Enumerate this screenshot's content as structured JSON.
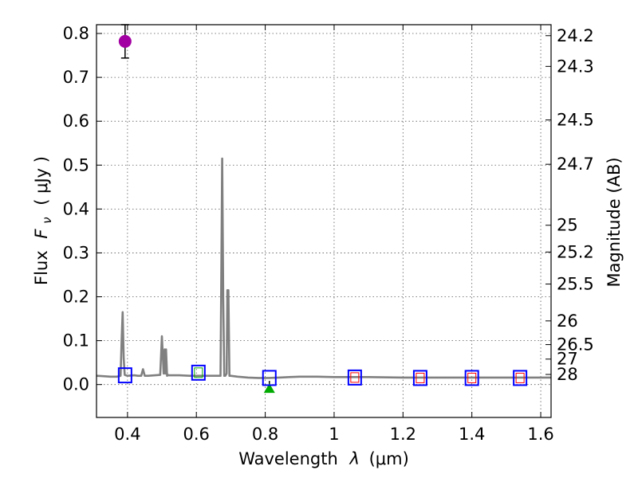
{
  "chart_data": {
    "type": "line",
    "xlabel": "Wavelength",
    "xlabel_symbol": "λ",
    "xlabel_unit": "(μm)",
    "ylabel": "Flux",
    "ylabel_symbol": "F",
    "ylabel_subscript": "ν",
    "ylabel_unit": "( μJy )",
    "y2label": "Magnitude (AB)",
    "xlim": [
      0.31,
      1.63
    ],
    "ylim": [
      -0.075,
      0.82
    ],
    "grid": true,
    "x_ticks": [
      0.4,
      0.6,
      0.8,
      1.0,
      1.2,
      1.4,
      1.6
    ],
    "x_tick_labels": [
      "0.4",
      "0.6",
      "0.8",
      "1",
      "1.2",
      "1.4",
      "1.6"
    ],
    "y_ticks": [
      0.0,
      0.1,
      0.2,
      0.3,
      0.4,
      0.5,
      0.6,
      0.7,
      0.8
    ],
    "y_tick_labels": [
      "0.0",
      "0.1",
      "0.2",
      "0.3",
      "0.4",
      "0.5",
      "0.6",
      "0.7",
      "0.8"
    ],
    "magnitude_ticks": [
      {
        "label": "24.2",
        "flux": 0.795
      },
      {
        "label": "24.3",
        "flux": 0.725
      },
      {
        "label": "24.5",
        "flux": 0.603
      },
      {
        "label": "24.7",
        "flux": 0.502
      },
      {
        "label": "25",
        "flux": 0.363
      },
      {
        "label": "25.2",
        "flux": 0.302
      },
      {
        "label": "25.5",
        "flux": 0.229
      },
      {
        "label": "26",
        "flux": 0.145
      },
      {
        "label": "26.5",
        "flux": 0.091
      },
      {
        "label": "27",
        "flux": 0.058
      },
      {
        "label": "28",
        "flux": 0.023
      }
    ],
    "series": [
      {
        "name": "model spectrum",
        "color": "#808080",
        "x": [
          0.31,
          0.33,
          0.35,
          0.37,
          0.38,
          0.383,
          0.386,
          0.389,
          0.392,
          0.4,
          0.42,
          0.43,
          0.44,
          0.445,
          0.45,
          0.46,
          0.48,
          0.495,
          0.5,
          0.505,
          0.508,
          0.51,
          0.512,
          0.515,
          0.518,
          0.52,
          0.55,
          0.58,
          0.61,
          0.64,
          0.66,
          0.67,
          0.672,
          0.675,
          0.678,
          0.681,
          0.684,
          0.688,
          0.69,
          0.693,
          0.696,
          0.699,
          0.72,
          0.75,
          0.78,
          0.81,
          0.84,
          0.87,
          0.9,
          0.95,
          1.0,
          1.1,
          1.2,
          1.3,
          1.4,
          1.5,
          1.6,
          1.63
        ],
        "y": [
          0.02,
          0.019,
          0.018,
          0.018,
          0.02,
          0.1,
          0.165,
          0.06,
          0.022,
          0.02,
          0.021,
          0.02,
          0.02,
          0.035,
          0.02,
          0.02,
          0.021,
          0.022,
          0.11,
          0.025,
          0.08,
          0.025,
          0.08,
          0.02,
          0.022,
          0.021,
          0.021,
          0.02,
          0.02,
          0.02,
          0.02,
          0.02,
          0.2,
          0.515,
          0.2,
          0.02,
          0.02,
          0.025,
          0.215,
          0.215,
          0.02,
          0.02,
          0.018,
          0.016,
          0.015,
          0.015,
          0.016,
          0.017,
          0.018,
          0.018,
          0.017,
          0.017,
          0.016,
          0.016,
          0.016,
          0.016,
          0.016,
          0.016
        ]
      },
      {
        "name": "photometry",
        "marker": "circle",
        "color": "#a200a2",
        "x": [
          0.393
        ],
        "y": [
          0.782
        ],
        "yerr": [
          0.038
        ]
      },
      {
        "name": "upper limit",
        "marker": "triangle",
        "color": "#00aa00",
        "x": [
          0.812
        ],
        "y": [
          -0.008
        ]
      },
      {
        "name": "model synthetic photometry",
        "marker": "open-square",
        "color": "#0000ff",
        "x": [
          0.393,
          0.606,
          0.812,
          1.06,
          1.25,
          1.4,
          1.54
        ],
        "y": [
          0.021,
          0.027,
          0.015,
          0.016,
          0.015,
          0.015,
          0.015
        ]
      },
      {
        "name": "inner model points",
        "marker": "small-open-square",
        "color": "#ff0000",
        "x": [
          1.06,
          1.25,
          1.4,
          1.54
        ],
        "y": [
          0.016,
          0.015,
          0.015,
          0.015
        ]
      },
      {
        "name": "inner model point (green)",
        "marker": "small-open-square",
        "color": "#00aa00",
        "x": [
          0.606
        ],
        "y": [
          0.027
        ]
      }
    ]
  }
}
